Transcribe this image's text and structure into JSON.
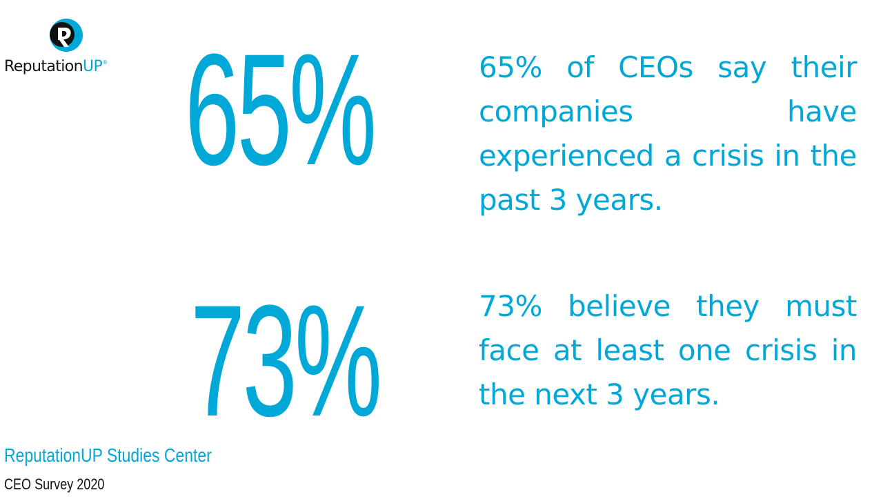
{
  "brand": {
    "name_main": "Reputation",
    "name_accent": "UP",
    "registered_mark": "®",
    "accent_color": "#00a8d8",
    "dark_color": "#111111",
    "logo_icon": "reputationup-logo-icon"
  },
  "stats": [
    {
      "number": "65%",
      "text": "65% of CEOs say their companies have experienced a crisis in the past 3 years."
    },
    {
      "number": "73%",
      "text": "73% believe they must face at least one crisis in the next 3 years."
    }
  ],
  "footer": {
    "source_title": "ReputationUP Studies Center",
    "source_subtitle": "CEO Survey 2020"
  }
}
